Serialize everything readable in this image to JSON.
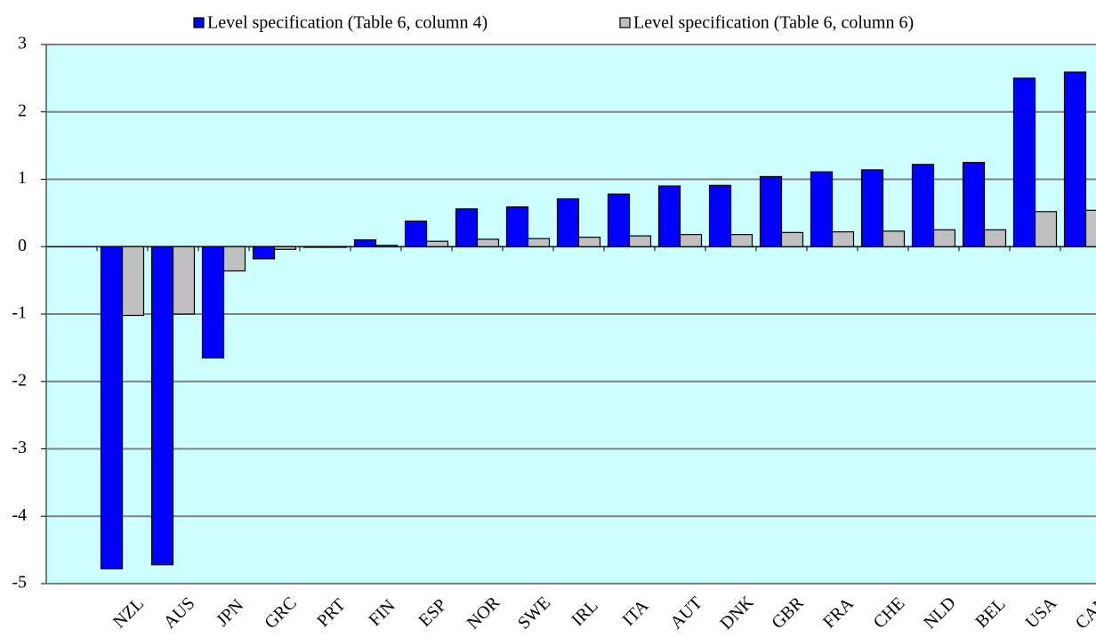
{
  "chart_data": {
    "type": "bar",
    "categories": [
      null,
      "NZL",
      "AUS",
      "JPN",
      "GRC",
      "PRT",
      "FIN",
      "ESP",
      "NOR",
      "SWE",
      "IRL",
      "ITA",
      "AUT",
      "DNK",
      "GBR",
      "FRA",
      "CHE",
      "NLD",
      "BEL",
      "USA",
      "CAN"
    ],
    "series": [
      {
        "name": "Level specification (Table 6, column 4)",
        "color": "#0000ff",
        "values": [
          null,
          -4.78,
          -4.72,
          -1.65,
          -0.18,
          -0.01,
          0.1,
          0.38,
          0.56,
          0.59,
          0.71,
          0.78,
          0.9,
          0.91,
          1.04,
          1.11,
          1.14,
          1.22,
          1.25,
          2.5,
          2.59
        ]
      },
      {
        "name": "Level specification (Table 6, column 6)",
        "color": "#c0c0c0",
        "values": [
          null,
          -1.02,
          -1.0,
          -0.36,
          -0.04,
          -0.01,
          0.02,
          0.08,
          0.11,
          0.12,
          0.14,
          0.16,
          0.18,
          0.18,
          0.21,
          0.22,
          0.23,
          0.25,
          0.25,
          0.52,
          0.54
        ]
      }
    ],
    "ylim": [
      -5,
      3
    ],
    "yticks": [
      -5,
      -4,
      -3,
      -2,
      -1,
      0,
      1,
      2,
      3
    ],
    "grid": true
  }
}
